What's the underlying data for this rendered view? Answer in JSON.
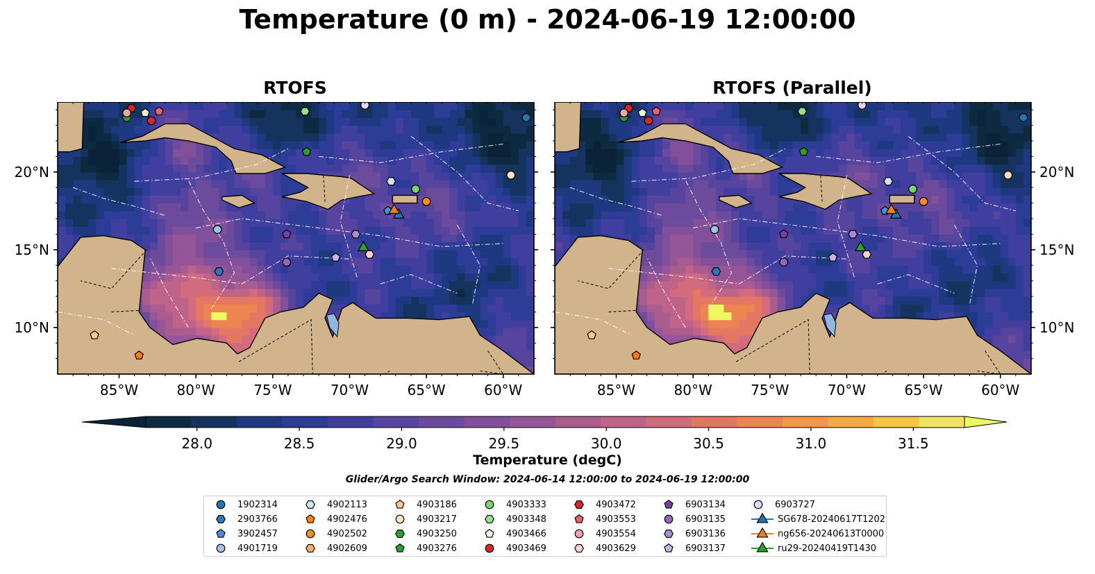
{
  "title": "Temperature (0 m) - 2024-06-19 12:00:00",
  "panels": [
    {
      "title": "RTOFS"
    },
    {
      "title": "RTOFS (Parallel)"
    }
  ],
  "chart_data": {
    "type": "heatmap",
    "variable": "Temperature",
    "depth": "0 m",
    "valid_time": "2024-06-19 12:00:00",
    "xlim": [
      -89,
      -58
    ],
    "ylim": [
      7,
      24.5
    ],
    "x_ticks": [
      -85,
      -80,
      -75,
      -70,
      -65,
      -60
    ],
    "x_tick_labels": [
      "85°W",
      "80°W",
      "75°W",
      "70°W",
      "65°W",
      "60°W"
    ],
    "y_ticks": [
      10,
      15,
      20
    ],
    "y_tick_labels": [
      "10°N",
      "15°N",
      "20°N"
    ],
    "colorbar": {
      "label": "Temperature (degC)",
      "min": 28.0,
      "max": 31.5,
      "step": 0.25,
      "extend": "both",
      "ticks": [
        28.0,
        28.5,
        29.0,
        29.5,
        30.0,
        30.5,
        31.0,
        31.5
      ],
      "tick_labels": [
        "28.0",
        "28.5",
        "29.0",
        "29.5",
        "30.0",
        "30.5",
        "31.0",
        "31.5"
      ],
      "colors": [
        "#0d2a40",
        "#15335e",
        "#1f3980",
        "#2c3c97",
        "#403f9f",
        "#56449f",
        "#6c4a9c",
        "#82509a",
        "#965596",
        "#ab5c8f",
        "#c06388",
        "#d36b7f",
        "#e47762",
        "#ee8452",
        "#f59547",
        "#f8a843",
        "#f6c447",
        "#f1e362"
      ],
      "under_color": "#0a2338",
      "over_color": "#eef961"
    },
    "colors": {
      "land": "#d2b48c",
      "lakes": "#8eb8e0"
    },
    "search_window": "Glider/Argo Search Window: 2024-06-14 12:00:00 to 2024-06-19 12:00:00",
    "series": [
      {
        "name": "1902314",
        "marker": "circle",
        "color": "#1f77b4",
        "lon": -58.5,
        "lat": 23.5
      },
      {
        "name": "2903766",
        "marker": "hexagon",
        "color": "#2a7ab9",
        "lon": -78.5,
        "lat": 13.6
      },
      {
        "name": "3902457",
        "marker": "pentagon",
        "color": "#4a90d9",
        "lon": -67.5,
        "lat": 17.5
      },
      {
        "name": "4901719",
        "marker": "circle",
        "color": "#9cc5e8",
        "lon": -78.6,
        "lat": 16.3
      },
      {
        "name": "4902113",
        "marker": "hexagon",
        "color": "#cfe3f3",
        "lon": -67.3,
        "lat": 19.4
      },
      {
        "name": "4902476",
        "marker": "pentagon",
        "color": "#ff7f0e",
        "lon": -83.7,
        "lat": 8.2
      },
      {
        "name": "4902502",
        "marker": "circle",
        "color": "#ff8c1f",
        "lon": -65.0,
        "lat": 18.1
      },
      {
        "name": "4902609",
        "marker": "hexagon",
        "color": "#ffb066",
        "lon": -85.0,
        "lat": 25.0
      },
      {
        "name": "4903186",
        "marker": "pentagon",
        "color": "#ffc98a",
        "lon": -86.6,
        "lat": 9.5
      },
      {
        "name": "4903217",
        "marker": "circle",
        "color": "#ffe4c4",
        "lon": -59.5,
        "lat": 19.8
      },
      {
        "name": "4903250",
        "marker": "hexagon",
        "color": "#2ca02c",
        "lon": -84.5,
        "lat": 23.5
      },
      {
        "name": "4903276",
        "marker": "pentagon",
        "color": "#2ca02c",
        "lon": -72.8,
        "lat": 21.3
      },
      {
        "name": "4903333",
        "marker": "circle",
        "color": "#77d56f",
        "lon": -65.7,
        "lat": 18.9
      },
      {
        "name": "4903348",
        "marker": "hexagon",
        "color": "#98df8a",
        "lon": -72.9,
        "lat": 23.9
      },
      {
        "name": "4903466",
        "marker": "pentagon",
        "color": "#e6f9d9",
        "lon": -83.3,
        "lat": 23.8
      },
      {
        "name": "4903469",
        "marker": "circle",
        "color": "#d62728",
        "lon": -82.9,
        "lat": 23.3
      },
      {
        "name": "4903472",
        "marker": "hexagon",
        "color": "#d62728",
        "lon": -84.2,
        "lat": 24.1
      },
      {
        "name": "4903553",
        "marker": "pentagon",
        "color": "#e8636b",
        "lon": -82.4,
        "lat": 23.9
      },
      {
        "name": "4903554",
        "marker": "circle",
        "color": "#f4a3a8",
        "lon": -84.5,
        "lat": 23.8
      },
      {
        "name": "4903629",
        "marker": "hexagon",
        "color": "#ffd1d1",
        "lon": -68.7,
        "lat": 14.7
      },
      {
        "name": "6903134",
        "marker": "pentagon",
        "color": "#7b3fa6",
        "lon": -74.1,
        "lat": 16.0
      },
      {
        "name": "6903135",
        "marker": "circle",
        "color": "#9467bd",
        "lon": -74.1,
        "lat": 14.2
      },
      {
        "name": "6903136",
        "marker": "hexagon",
        "color": "#ab8ad3",
        "lon": -69.6,
        "lat": 16.0
      },
      {
        "name": "6903137",
        "marker": "pentagon",
        "color": "#c9b3e6",
        "lon": -70.9,
        "lat": 14.5
      },
      {
        "name": "6903727",
        "marker": "circle",
        "color": "#e5d7f5",
        "lon": -69.0,
        "lat": 24.3
      },
      {
        "name": "SG678-20240617T1202",
        "marker": "triangle",
        "color": "#1f77b4",
        "line": true,
        "lon": -66.8,
        "lat": 17.3
      },
      {
        "name": "ng656-20240613T0000",
        "marker": "triangle",
        "color": "#ff7f0e",
        "line": true,
        "lon": -67.1,
        "lat": 17.6
      },
      {
        "name": "ru29-20240419T1430",
        "marker": "triangle",
        "color": "#2ca02c",
        "line": true,
        "lon": -69.1,
        "lat": 15.2
      }
    ]
  }
}
